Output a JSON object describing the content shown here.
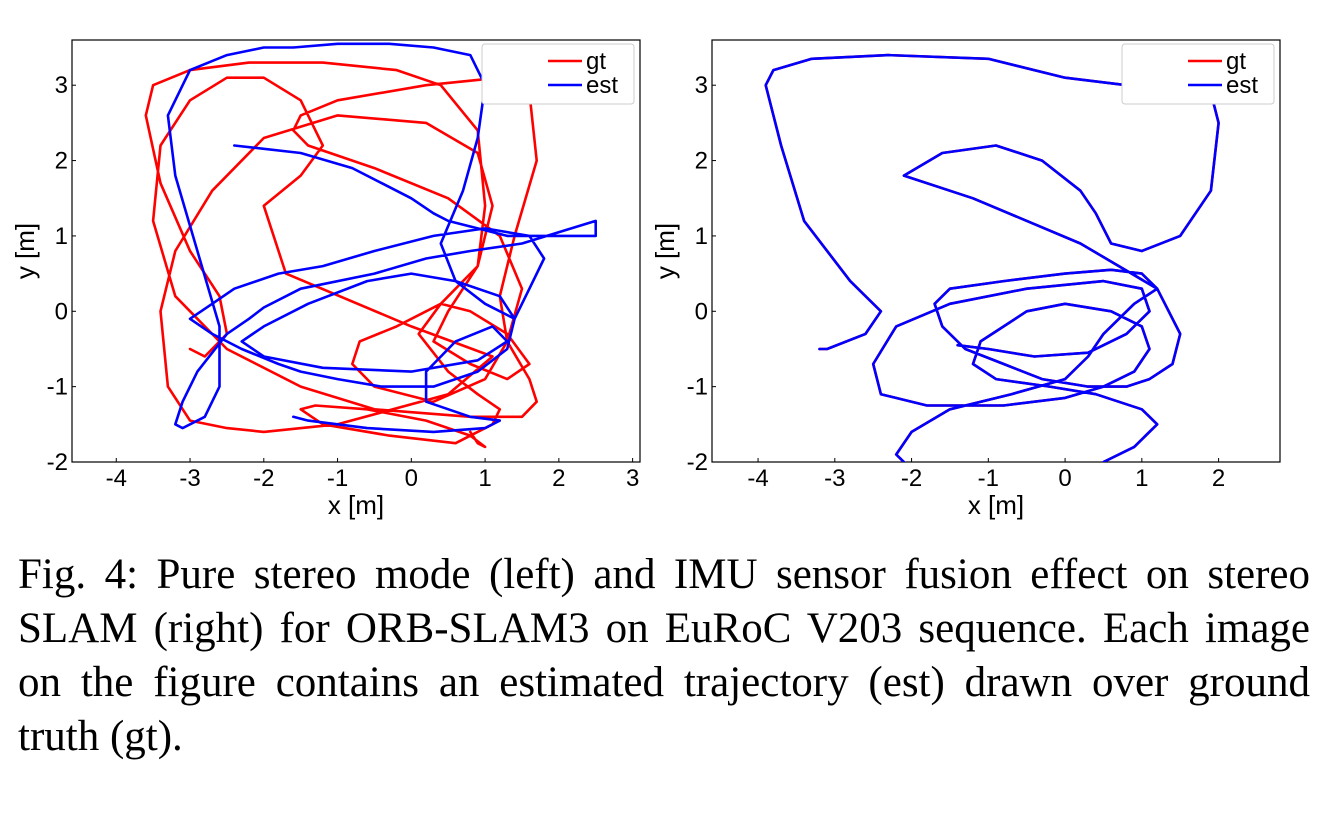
{
  "chart_data": [
    {
      "type": "line",
      "title": "",
      "xlabel": "x [m]",
      "ylabel": "y [m]",
      "xlim": [
        -4.6,
        3.1
      ],
      "ylim": [
        -2,
        3.6
      ],
      "xticks": [
        "-4",
        "-3",
        "-2",
        "-1",
        "0",
        "1",
        "2",
        "3"
      ],
      "yticks": [
        "-2",
        "-1",
        "0",
        "1",
        "2",
        "3"
      ],
      "grid": false,
      "legend": "top-right",
      "series": [
        {
          "name": "gt",
          "color": "#ff0000",
          "x": [
            -3.0,
            -2.8,
            -2.5,
            -2.6,
            -3.0,
            -3.4,
            -3.6,
            -3.5,
            -3.0,
            -2.2,
            -1.2,
            -0.2,
            0.4,
            0.9,
            1.0,
            0.9,
            0.4,
            -0.2,
            -0.7,
            -0.8,
            -0.5,
            0.3,
            1.0,
            1.3,
            1.5,
            1.2,
            0.5,
            -0.5,
            -1.4,
            -1.6,
            -1.5,
            -1.0,
            0.2,
            1.2,
            1.6,
            1.7,
            1.4,
            1.2,
            1.3,
            1.6,
            1.7,
            1.5,
            0.8,
            -0.5,
            -1.5,
            -2.5,
            -3.2,
            -3.5,
            -3.4,
            -3.0,
            -2.5,
            -2.0,
            -1.5,
            -1.2,
            -1.5,
            -2.0,
            -1.7,
            0.0,
            1.1,
            0.5,
            -1.0,
            -2.0,
            -2.5,
            -3.0,
            -3.3,
            -3.4,
            -3.2,
            -2.7,
            -2.0,
            -1.0,
            0.2,
            0.9,
            1.1,
            0.9,
            0.5,
            0.3,
            0.8,
            1.3,
            1.6,
            1.3,
            0.8,
            0.4,
            0.1,
            0.5,
            0.9,
            1.2,
            1.1,
            0.6,
            -0.3,
            -1.2,
            -1.5,
            -1.3,
            -0.6,
            0.2,
            0.8,
            1.0,
            0.9,
            0.8
          ],
          "y": [
            -0.5,
            -0.6,
            -0.3,
            0.2,
            0.8,
            1.7,
            2.6,
            3.0,
            3.2,
            3.3,
            3.3,
            3.2,
            3.0,
            2.4,
            1.4,
            0.6,
            0.1,
            -0.2,
            -0.4,
            -0.7,
            -1.0,
            -1.2,
            -0.9,
            -0.4,
            0.3,
            1.0,
            1.5,
            1.9,
            2.2,
            2.4,
            2.6,
            2.8,
            3.0,
            3.1,
            2.9,
            2.0,
            1.0,
            0.2,
            -0.4,
            -0.9,
            -1.2,
            -1.4,
            -1.4,
            -1.3,
            -1.0,
            -0.5,
            0.2,
            1.2,
            2.2,
            2.8,
            3.1,
            3.1,
            2.8,
            2.2,
            1.8,
            1.4,
            0.5,
            -0.2,
            -0.6,
            -1.1,
            -1.5,
            -1.6,
            -1.55,
            -1.45,
            -1.0,
            0.0,
            0.8,
            1.6,
            2.3,
            2.6,
            2.5,
            2.1,
            1.4,
            0.6,
            0.0,
            -0.4,
            -0.7,
            -0.9,
            -0.7,
            -0.3,
            0.0,
            0.1,
            -0.3,
            -0.8,
            -1.1,
            -1.3,
            -1.5,
            -1.75,
            -1.65,
            -1.5,
            -1.3,
            -1.25,
            -1.3,
            -1.45,
            -1.65,
            -1.8,
            -1.75,
            -1.6
          ]
        },
        {
          "name": "est",
          "color": "#0000ff",
          "x": [
            -2.4,
            -1.5,
            -0.8,
            -0.4,
            0.0,
            0.3,
            0.5,
            0.9,
            1.3,
            1.7,
            2.5,
            2.5,
            1.5,
            0.8,
            0.2,
            -0.5,
            -1.5,
            -2.0,
            -2.2,
            -2.5,
            -2.9,
            -3.1,
            -3.2,
            -3.1,
            -2.8,
            -2.6,
            -2.6,
            -2.9,
            -3.2,
            -3.3,
            -3.0,
            -2.5,
            -2.0,
            -1.6,
            -1.0,
            -0.3,
            0.3,
            0.8,
            1.0,
            0.9,
            0.7,
            0.4,
            0.6,
            1.0,
            1.4,
            1.6,
            1.8,
            1.6,
            1.0,
            0.3,
            -0.5,
            -1.2,
            -1.8,
            -2.4,
            -2.7,
            -3.0,
            -2.7,
            -2.3,
            -1.8,
            -1.5,
            -1.0,
            -0.4,
            0.3,
            0.9,
            1.3,
            1.4,
            1.2,
            0.6,
            0.0,
            -0.6,
            -1.4,
            -2.0,
            -2.3,
            -2.0,
            -1.2,
            0.0,
            0.9,
            1.3,
            1.1,
            0.6,
            0.2,
            0.2,
            0.8,
            1.2,
            1.0,
            0.3,
            -0.6,
            -1.4,
            -1.6
          ],
          "y": [
            2.2,
            2.1,
            1.9,
            1.7,
            1.5,
            1.3,
            1.2,
            1.1,
            1.0,
            1.0,
            1.0,
            1.2,
            0.9,
            0.8,
            0.7,
            0.5,
            0.3,
            0.05,
            -0.1,
            -0.3,
            -0.8,
            -1.2,
            -1.5,
            -1.55,
            -1.4,
            -1.0,
            -0.2,
            0.8,
            1.8,
            2.6,
            3.2,
            3.4,
            3.5,
            3.5,
            3.55,
            3.55,
            3.5,
            3.4,
            3.0,
            2.3,
            1.6,
            0.9,
            0.4,
            0.1,
            -0.1,
            0.3,
            0.7,
            1.0,
            1.1,
            1.0,
            0.8,
            0.6,
            0.5,
            0.3,
            0.1,
            -0.1,
            -0.3,
            -0.5,
            -0.7,
            -0.8,
            -0.9,
            -1.0,
            -1.0,
            -0.8,
            -0.5,
            -0.1,
            0.2,
            0.4,
            0.5,
            0.4,
            0.1,
            -0.2,
            -0.4,
            -0.6,
            -0.75,
            -0.8,
            -0.65,
            -0.4,
            -0.2,
            -0.4,
            -0.8,
            -1.2,
            -1.4,
            -1.45,
            -1.55,
            -1.6,
            -1.55,
            -1.45,
            -1.4
          ]
        }
      ]
    },
    {
      "type": "line",
      "title": "",
      "xlabel": "x [m]",
      "ylabel": "y [m]",
      "xlim": [
        -4.6,
        2.8
      ],
      "ylim": [
        -2,
        3.6
      ],
      "xticks": [
        "-4",
        "-3",
        "-2",
        "-1",
        "0",
        "1",
        "2"
      ],
      "yticks": [
        "-2",
        "-1",
        "0",
        "1",
        "2",
        "3"
      ],
      "grid": false,
      "legend": "top-right",
      "series": [
        {
          "name": "gt",
          "color": "#ff0000",
          "x": [
            -3.2,
            -3.1,
            -2.6,
            -2.4,
            -2.8,
            -3.4,
            -3.7,
            -3.9,
            -3.8,
            -3.3,
            -2.3,
            -1.0,
            0.0,
            0.8,
            1.3,
            1.9,
            2.0,
            1.9,
            1.5,
            1.0,
            0.6,
            0.4,
            0.2,
            -0.3,
            -0.9,
            -1.6,
            -2.1,
            -1.2,
            0.2,
            1.2,
            1.5,
            1.4,
            1.1,
            0.8,
            0.3,
            -0.3,
            -0.8,
            -1.3,
            -1.6,
            -1.7,
            -1.5,
            -0.8,
            0.0,
            0.6,
            1.0,
            1.2,
            0.9,
            0.5,
            0.3,
            0.0,
            -0.7,
            -1.5,
            -2.0,
            -2.2,
            -2.0,
            -1.7,
            -1.4,
            -1.0,
            -0.4,
            0.2,
            0.5,
            0.5,
            0.9,
            1.2,
            1.0,
            0.4,
            -0.2,
            -0.9,
            -1.2,
            -1.1,
            -0.8,
            -0.5,
            0.0,
            0.6,
            1.0,
            1.1,
            0.9,
            0.5,
            0.0,
            -0.8,
            -1.8,
            -2.4,
            -2.5,
            -2.2,
            -1.5,
            -0.5,
            0.5,
            1.0,
            1.1,
            0.8,
            0.3,
            -0.4,
            -1.0,
            -1.4
          ],
          "y": [
            -0.5,
            -0.5,
            -0.3,
            0.0,
            0.4,
            1.2,
            2.2,
            3.0,
            3.2,
            3.35,
            3.4,
            3.35,
            3.1,
            3.0,
            3.0,
            2.9,
            2.5,
            1.6,
            1.0,
            0.8,
            0.9,
            1.3,
            1.6,
            2.0,
            2.2,
            2.1,
            1.8,
            1.5,
            0.9,
            0.3,
            -0.3,
            -0.7,
            -0.9,
            -1.0,
            -1.0,
            -0.9,
            -0.7,
            -0.5,
            -0.2,
            0.1,
            0.3,
            0.4,
            0.5,
            0.55,
            0.5,
            0.3,
            0.1,
            -0.3,
            -0.6,
            -0.9,
            -1.1,
            -1.3,
            -1.6,
            -1.9,
            -2.1,
            -2.3,
            -2.5,
            -2.6,
            -2.6,
            -2.5,
            -2.3,
            -2.0,
            -1.8,
            -1.5,
            -1.3,
            -1.1,
            -1.0,
            -0.9,
            -0.7,
            -0.4,
            -0.2,
            0.0,
            0.1,
            0.0,
            -0.2,
            -0.5,
            -0.8,
            -1.0,
            -1.15,
            -1.25,
            -1.25,
            -1.1,
            -0.7,
            -0.2,
            0.1,
            0.3,
            0.4,
            0.3,
            0.0,
            -0.3,
            -0.55,
            -0.6,
            -0.5,
            -0.45
          ]
        },
        {
          "name": "est",
          "color": "#0000ff",
          "x": [
            -3.2,
            -3.1,
            -2.6,
            -2.4,
            -2.8,
            -3.4,
            -3.7,
            -3.9,
            -3.8,
            -3.3,
            -2.3,
            -1.0,
            0.0,
            0.8,
            1.3,
            1.9,
            2.0,
            1.9,
            1.5,
            1.0,
            0.6,
            0.4,
            0.2,
            -0.3,
            -0.9,
            -1.6,
            -2.1,
            -1.2,
            0.2,
            1.2,
            1.5,
            1.4,
            1.1,
            0.8,
            0.3,
            -0.3,
            -0.8,
            -1.3,
            -1.6,
            -1.7,
            -1.5,
            -0.8,
            0.0,
            0.6,
            1.0,
            1.2,
            0.9,
            0.5,
            0.3,
            0.0,
            -0.7,
            -1.5,
            -2.0,
            -2.2,
            -2.0,
            -1.7,
            -1.4,
            -1.0,
            -0.4,
            0.2,
            0.5,
            0.5,
            0.9,
            1.2,
            1.0,
            0.4,
            -0.2,
            -0.9,
            -1.2,
            -1.1,
            -0.8,
            -0.5,
            0.0,
            0.6,
            1.0,
            1.1,
            0.9,
            0.5,
            0.0,
            -0.8,
            -1.8,
            -2.4,
            -2.5,
            -2.2,
            -1.5,
            -0.5,
            0.5,
            1.0,
            1.1,
            0.8,
            0.3,
            -0.4,
            -1.0,
            -1.4
          ],
          "y": [
            -0.5,
            -0.5,
            -0.3,
            0.0,
            0.4,
            1.2,
            2.2,
            3.0,
            3.2,
            3.35,
            3.4,
            3.35,
            3.1,
            3.0,
            3.0,
            2.9,
            2.5,
            1.6,
            1.0,
            0.8,
            0.9,
            1.3,
            1.6,
            2.0,
            2.2,
            2.1,
            1.8,
            1.5,
            0.9,
            0.3,
            -0.3,
            -0.7,
            -0.9,
            -1.0,
            -1.0,
            -0.9,
            -0.7,
            -0.5,
            -0.2,
            0.1,
            0.3,
            0.4,
            0.5,
            0.55,
            0.5,
            0.3,
            0.1,
            -0.3,
            -0.6,
            -0.9,
            -1.1,
            -1.3,
            -1.6,
            -1.9,
            -2.1,
            -2.3,
            -2.5,
            -2.6,
            -2.6,
            -2.5,
            -2.3,
            -2.0,
            -1.8,
            -1.5,
            -1.3,
            -1.1,
            -1.0,
            -0.9,
            -0.7,
            -0.4,
            -0.2,
            0.0,
            0.1,
            0.0,
            -0.2,
            -0.5,
            -0.8,
            -1.0,
            -1.15,
            -1.25,
            -1.25,
            -1.1,
            -0.7,
            -0.2,
            0.1,
            0.3,
            0.4,
            0.3,
            0.0,
            -0.3,
            -0.55,
            -0.6,
            -0.5,
            -0.45
          ]
        }
      ]
    }
  ],
  "caption": "Fig. 4: Pure stereo mode (left) and IMU sensor fusion effect on stereo SLAM (right) for ORB-SLAM3 on EuRoC V203 sequence. Each image on the figure contains an estimated trajectory (est) drawn over ground truth (gt)."
}
